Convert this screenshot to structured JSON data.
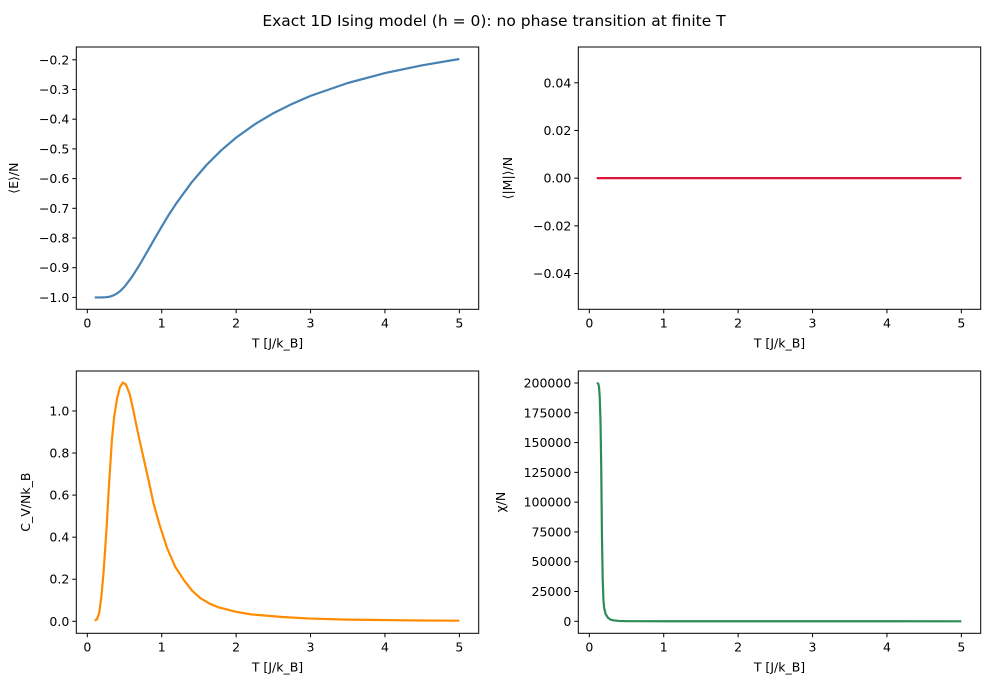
{
  "chart_data": {
    "title": "Exact 1D Ising model (h = 0): no phase transition at finite T",
    "subplots": [
      {
        "type": "line",
        "xlabel": "T [J/k_B]",
        "ylabel": "⟨E⟩/N",
        "color": "#4682b4",
        "xlim": [
          -0.148,
          5.26
        ],
        "ylim": [
          -1.04,
          -0.157
        ],
        "xticks": [
          0,
          1,
          2,
          3,
          4,
          5
        ],
        "yticks": [
          -1.0,
          -0.9,
          -0.8,
          -0.7,
          -0.6,
          -0.5,
          -0.4,
          -0.3,
          -0.2
        ],
        "ytick_decimals": 1,
        "grid": false,
        "points": [
          [
            0.1,
            -1.0
          ],
          [
            0.2,
            -0.9999
          ],
          [
            0.25,
            -0.9993
          ],
          [
            0.3,
            -0.9975
          ],
          [
            0.35,
            -0.9934
          ],
          [
            0.4,
            -0.9866
          ],
          [
            0.45,
            -0.9767
          ],
          [
            0.5,
            -0.964
          ],
          [
            0.6,
            -0.9311
          ],
          [
            0.7,
            -0.8913
          ],
          [
            0.8,
            -0.8483
          ],
          [
            0.9,
            -0.8045
          ],
          [
            1.0,
            -0.7616
          ],
          [
            1.1,
            -0.72
          ],
          [
            1.2,
            -0.682
          ],
          [
            1.4,
            -0.6134
          ],
          [
            1.6,
            -0.5546
          ],
          [
            1.8,
            -0.5048
          ],
          [
            2.0,
            -0.4621
          ],
          [
            2.25,
            -0.4173
          ],
          [
            2.5,
            -0.3799
          ],
          [
            2.75,
            -0.3487
          ],
          [
            3.0,
            -0.3215
          ],
          [
            3.5,
            -0.2782
          ],
          [
            4.0,
            -0.2449
          ],
          [
            4.5,
            -0.2186
          ],
          [
            5.0,
            -0.1974
          ]
        ]
      },
      {
        "type": "line",
        "xlabel": "T [J/k_B]",
        "ylabel": "⟨|M|⟩/N",
        "color": "#dc143c",
        "xlim": [
          -0.148,
          5.26
        ],
        "ylim": [
          -0.055,
          0.055
        ],
        "xticks": [
          0,
          1,
          2,
          3,
          4,
          5
        ],
        "yticks": [
          -0.04,
          -0.02,
          0.0,
          0.02,
          0.04
        ],
        "ytick_decimals": 2,
        "grid": false,
        "points": [
          [
            0.1,
            0.0
          ],
          [
            5.0,
            0.0
          ]
        ]
      },
      {
        "type": "line",
        "xlabel": "T [J/k_B]",
        "ylabel": "C_V/Nk_B",
        "color": "#ff8c00",
        "xlim": [
          -0.148,
          5.26
        ],
        "ylim": [
          -0.057,
          1.19
        ],
        "xticks": [
          0,
          1,
          2,
          3,
          4,
          5
        ],
        "yticks": [
          0.0,
          0.2,
          0.4,
          0.6,
          0.8,
          1.0
        ],
        "ytick_decimals": 1,
        "grid": false,
        "points": [
          [
            0.1,
            0.003
          ],
          [
            0.13,
            0.01
          ],
          [
            0.16,
            0.04
          ],
          [
            0.19,
            0.12
          ],
          [
            0.22,
            0.24
          ],
          [
            0.26,
            0.45
          ],
          [
            0.29,
            0.64
          ],
          [
            0.33,
            0.86
          ],
          [
            0.36,
            0.97
          ],
          [
            0.4,
            1.06
          ],
          [
            0.44,
            1.115
          ],
          [
            0.48,
            1.135
          ],
          [
            0.52,
            1.125
          ],
          [
            0.57,
            1.08
          ],
          [
            0.62,
            1.0
          ],
          [
            0.69,
            0.88
          ],
          [
            0.76,
            0.77
          ],
          [
            0.83,
            0.66
          ],
          [
            0.89,
            0.56
          ],
          [
            0.97,
            0.46
          ],
          [
            1.07,
            0.35
          ],
          [
            1.18,
            0.26
          ],
          [
            1.3,
            0.195
          ],
          [
            1.41,
            0.145
          ],
          [
            1.52,
            0.11
          ],
          [
            1.64,
            0.085
          ],
          [
            1.75,
            0.068
          ],
          [
            2.0,
            0.045
          ],
          [
            2.2,
            0.033
          ],
          [
            2.64,
            0.02
          ],
          [
            3.0,
            0.013
          ],
          [
            3.5,
            0.008
          ],
          [
            4.0,
            0.006
          ],
          [
            4.5,
            0.004
          ],
          [
            5.0,
            0.003
          ]
        ]
      },
      {
        "type": "line",
        "xlabel": "T [J/k_B]",
        "ylabel": "χ/N",
        "color": "#2e8b57",
        "xlim": [
          -0.148,
          5.26
        ],
        "ylim": [
          -10084,
          210084
        ],
        "xticks": [
          0,
          1,
          2,
          3,
          4,
          5
        ],
        "yticks": [
          0,
          25000,
          50000,
          75000,
          100000,
          125000,
          150000,
          175000,
          200000
        ],
        "ytick_decimals": 0,
        "grid": false,
        "points": [
          [
            0.1,
            200000
          ],
          [
            0.12,
            199500
          ],
          [
            0.13,
            197000
          ],
          [
            0.14,
            188000
          ],
          [
            0.15,
            169000
          ],
          [
            0.16,
            130000
          ],
          [
            0.17,
            71000
          ],
          [
            0.18,
            35000
          ],
          [
            0.19,
            17600
          ],
          [
            0.2,
            11000
          ],
          [
            0.22,
            6000
          ],
          [
            0.25,
            3000
          ],
          [
            0.28,
            1600
          ],
          [
            0.32,
            800
          ],
          [
            0.4,
            300
          ],
          [
            0.5,
            100
          ],
          [
            1.0,
            10
          ],
          [
            5.0,
            1
          ]
        ]
      }
    ]
  }
}
